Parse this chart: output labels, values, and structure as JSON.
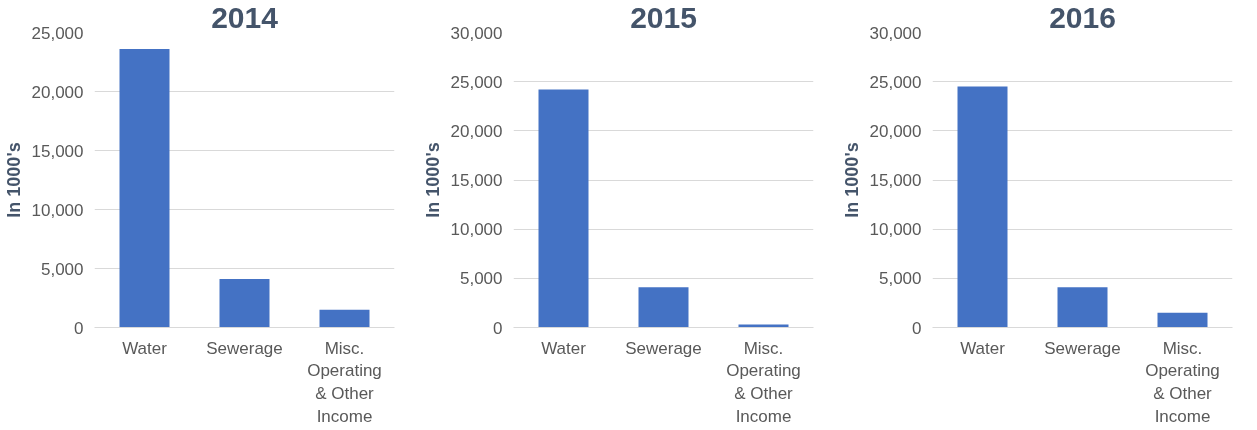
{
  "chart_data": [
    {
      "type": "bar",
      "title": "2014",
      "ylabel": "In 1000's",
      "categories": [
        "Water",
        "Sewerage",
        "Misc. Operating & Other Income"
      ],
      "values": [
        23600,
        4100,
        1500
      ],
      "color": "#4472c4",
      "ylim": [
        0,
        25000
      ],
      "yticks": [
        0,
        {
          "value": 5000,
          "label": "5,000"
        },
        {
          "value": 10000,
          "label": "10,000"
        },
        {
          "value": 15000,
          "label": "15,000"
        },
        {
          "value": 20000,
          "label": "20,000"
        },
        {
          "value": 25000,
          "label": "25,000"
        }
      ],
      "grid": "y"
    },
    {
      "type": "bar",
      "title": "2015",
      "ylabel": "In 1000's",
      "categories": [
        "Water",
        "Sewerage",
        "Misc. Operating & Other Income"
      ],
      "values": [
        24200,
        4100,
        300
      ],
      "color": "#4472c4",
      "ylim": [
        0,
        30000
      ],
      "yticks": [
        0,
        {
          "value": 5000,
          "label": "5,000"
        },
        {
          "value": 10000,
          "label": "10,000"
        },
        {
          "value": 15000,
          "label": "15,000"
        },
        {
          "value": 20000,
          "label": "20,000"
        },
        {
          "value": 25000,
          "label": "25,000"
        },
        {
          "value": 30000,
          "label": "30,000"
        }
      ],
      "grid": "y"
    },
    {
      "type": "bar",
      "title": "2016",
      "ylabel": "In 1000's",
      "categories": [
        "Water",
        "Sewerage",
        "Misc. Operating & Other Income"
      ],
      "values": [
        24500,
        4100,
        1500
      ],
      "color": "#4472c4",
      "ylim": [
        0,
        30000
      ],
      "yticks": [
        0,
        {
          "value": 5000,
          "label": "5,000"
        },
        {
          "value": 10000,
          "label": "10,000"
        },
        {
          "value": 15000,
          "label": "15,000"
        },
        {
          "value": 20000,
          "label": "20,000"
        },
        {
          "value": 25000,
          "label": "25,000"
        },
        {
          "value": 30000,
          "label": "30,000"
        }
      ],
      "grid": "y"
    }
  ]
}
